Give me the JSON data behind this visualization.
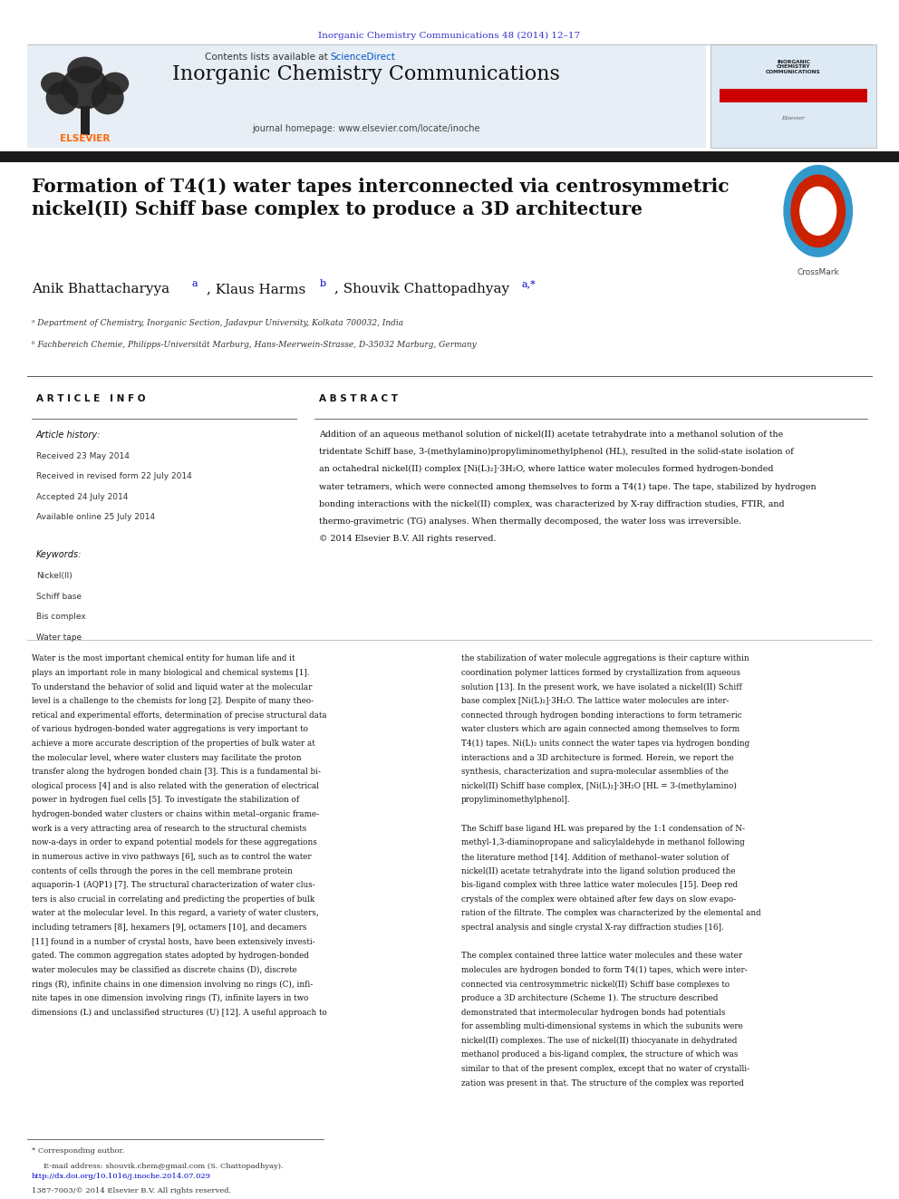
{
  "page_bg": "#ffffff",
  "header_top_text": "Inorganic Chemistry Communications 48 (2014) 12–17",
  "header_top_color": "#3333cc",
  "journal_name": "Inorganic Chemistry Communications",
  "journal_homepage": "journal homepage: www.elsevier.com/locate/inoche",
  "contents_text": "Contents lists available at ScienceDirect",
  "sciencedirect_color": "#0000cc",
  "header_bg": "#e8eef5",
  "elsevier_color": "#ff6600",
  "title": "Formation of T4(1) water tapes interconnected via centrosymmetric\nnickel(II) Schiff base complex to produce a 3D architecture",
  "authors": "Anik Bhattacharyya ᵃ, Klaus Harms ᵇ, Shouvik Chattopadhyay ᵃ,*",
  "affil_a": "ᵃ Department of Chemistry, Inorganic Section, Jadavpur University, Kolkata 700032, India",
  "affil_b": "ᵇ Fachbereich Chemie, Philipps-Universität Marburg, Hans-Meerwein-Strasse, D-35032 Marburg, Germany",
  "article_info_label": "A R T I C L E   I N F O",
  "abstract_label": "A B S T R A C T",
  "article_history_label": "Article history:",
  "received_label": "Received 23 May 2014",
  "revised_label": "Received in revised form 22 July 2014",
  "accepted_label": "Accepted 24 July 2014",
  "available_label": "Available online 25 July 2014",
  "keywords_label": "Keywords:",
  "keyword1": "Nickel(II)",
  "keyword2": "Schiff base",
  "keyword3": "Bis complex",
  "keyword4": "Water tape",
  "abstract_text": "Addition of an aqueous methanol solution of nickel(II) acetate tetrahydrate into a methanol solution of the\ntridentate Schiff base, 3-(methylamino)propyliminomethylphenol (HL), resulted in the solid-state isolation of\nan octahedral nickel(II) complex [Ni(L)₂]·3H₂O, where lattice water molecules formed hydrogen-bonded\nwater tetramers, which were connected among themselves to form a T4(1) tape. The tape, stabilized by hydrogen\nbonding interactions with the nickel(II) complex, was characterized by X-ray diffraction studies, FTIR, and\nthermo-gravimetric (TG) analyses. When thermally decomposed, the water loss was irreversible.\n© 2014 Elsevier B.V. All rights reserved.",
  "footer_corr": "* Corresponding author.",
  "footer_email": "E-mail address: shouvik.chem@gmail.com (S. Chattopadhyay).",
  "doi_text": "http://dx.doi.org/10.1016/j.inoche.2014.07.029",
  "issn_text": "1387-7003/© 2014 Elsevier B.V. All rights reserved.",
  "col1_lines": [
    "Water is the most important chemical entity for human life and it",
    "plays an important role in many biological and chemical systems [1].",
    "To understand the behavior of solid and liquid water at the molecular",
    "level is a challenge to the chemists for long [2]. Despite of many theo-",
    "retical and experimental efforts, determination of precise structural data",
    "of various hydrogen-bonded water aggregations is very important to",
    "achieve a more accurate description of the properties of bulk water at",
    "the molecular level, where water clusters may facilitate the proton",
    "transfer along the hydrogen bonded chain [3]. This is a fundamental bi-",
    "ological process [4] and is also related with the generation of electrical",
    "power in hydrogen fuel cells [5]. To investigate the stabilization of",
    "hydrogen-bonded water clusters or chains within metal–organic frame-",
    "work is a very attracting area of research to the structural chemists",
    "now-a-days in order to expand potential models for these aggregations",
    "in numerous active in vivo pathways [6], such as to control the water",
    "contents of cells through the pores in the cell membrane protein",
    "aquaporin-1 (AQP1) [7]. The structural characterization of water clus-",
    "ters is also crucial in correlating and predicting the properties of bulk",
    "water at the molecular level. In this regard, a variety of water clusters,",
    "including tetramers [8], hexamers [9], octamers [10], and decamers",
    "[11] found in a number of crystal hosts, have been extensively investi-",
    "gated. The common aggregation states adopted by hydrogen-bonded",
    "water molecules may be classified as discrete chains (D), discrete",
    "rings (R), infinite chains in one dimension involving no rings (C), infi-",
    "nite tapes in one dimension involving rings (T), infinite layers in two",
    "dimensions (L) and unclassified structures (U) [12]. A useful approach to"
  ],
  "col2_lines": [
    "the stabilization of water molecule aggregations is their capture within",
    "coordination polymer lattices formed by crystallization from aqueous",
    "solution [13]. In the present work, we have isolated a nickel(II) Schiff",
    "base complex [Ni(L)₂]·3H₂O. The lattice water molecules are inter-",
    "connected through hydrogen bonding interactions to form tetrameric",
    "water clusters which are again connected among themselves to form",
    "T4(1) tapes. Ni(L)₂ units connect the water tapes via hydrogen bonding",
    "interactions and a 3D architecture is formed. Herein, we report the",
    "synthesis, characterization and supra-molecular assemblies of the",
    "nickel(II) Schiff base complex, [Ni(L)₂]·3H₂O [HL = 3-(methylamino)",
    "propyliminomethylphenol].",
    "",
    "The Schiff base ligand HL was prepared by the 1:1 condensation of N-",
    "methyl-1,3-diaminopropane and salicylaldehyde in methanol following",
    "the literature method [14]. Addition of methanol–water solution of",
    "nickel(II) acetate tetrahydrate into the ligand solution produced the",
    "bis-ligand complex with three lattice water molecules [15]. Deep red",
    "crystals of the complex were obtained after few days on slow evapo-",
    "ration of the filtrate. The complex was characterized by the elemental and",
    "spectral analysis and single crystal X-ray diffraction studies [16].",
    "",
    "The complex contained three lattice water molecules and these water",
    "molecules are hydrogen bonded to form T4(1) tapes, which were inter-",
    "connected via centrosymmetric nickel(II) Schiff base complexes to",
    "produce a 3D architecture (Scheme 1). The structure described",
    "demonstrated that intermolecular hydrogen bonds had potentials",
    "for assembling multi-dimensional systems in which the subunits were",
    "nickel(II) complexes. The use of nickel(II) thiocyanate in dehydrated",
    "methanol produced a bis-ligand complex, the structure of which was",
    "similar to that of the present complex, except that no water of crystalli-",
    "zation was present in that. The structure of the complex was reported"
  ]
}
